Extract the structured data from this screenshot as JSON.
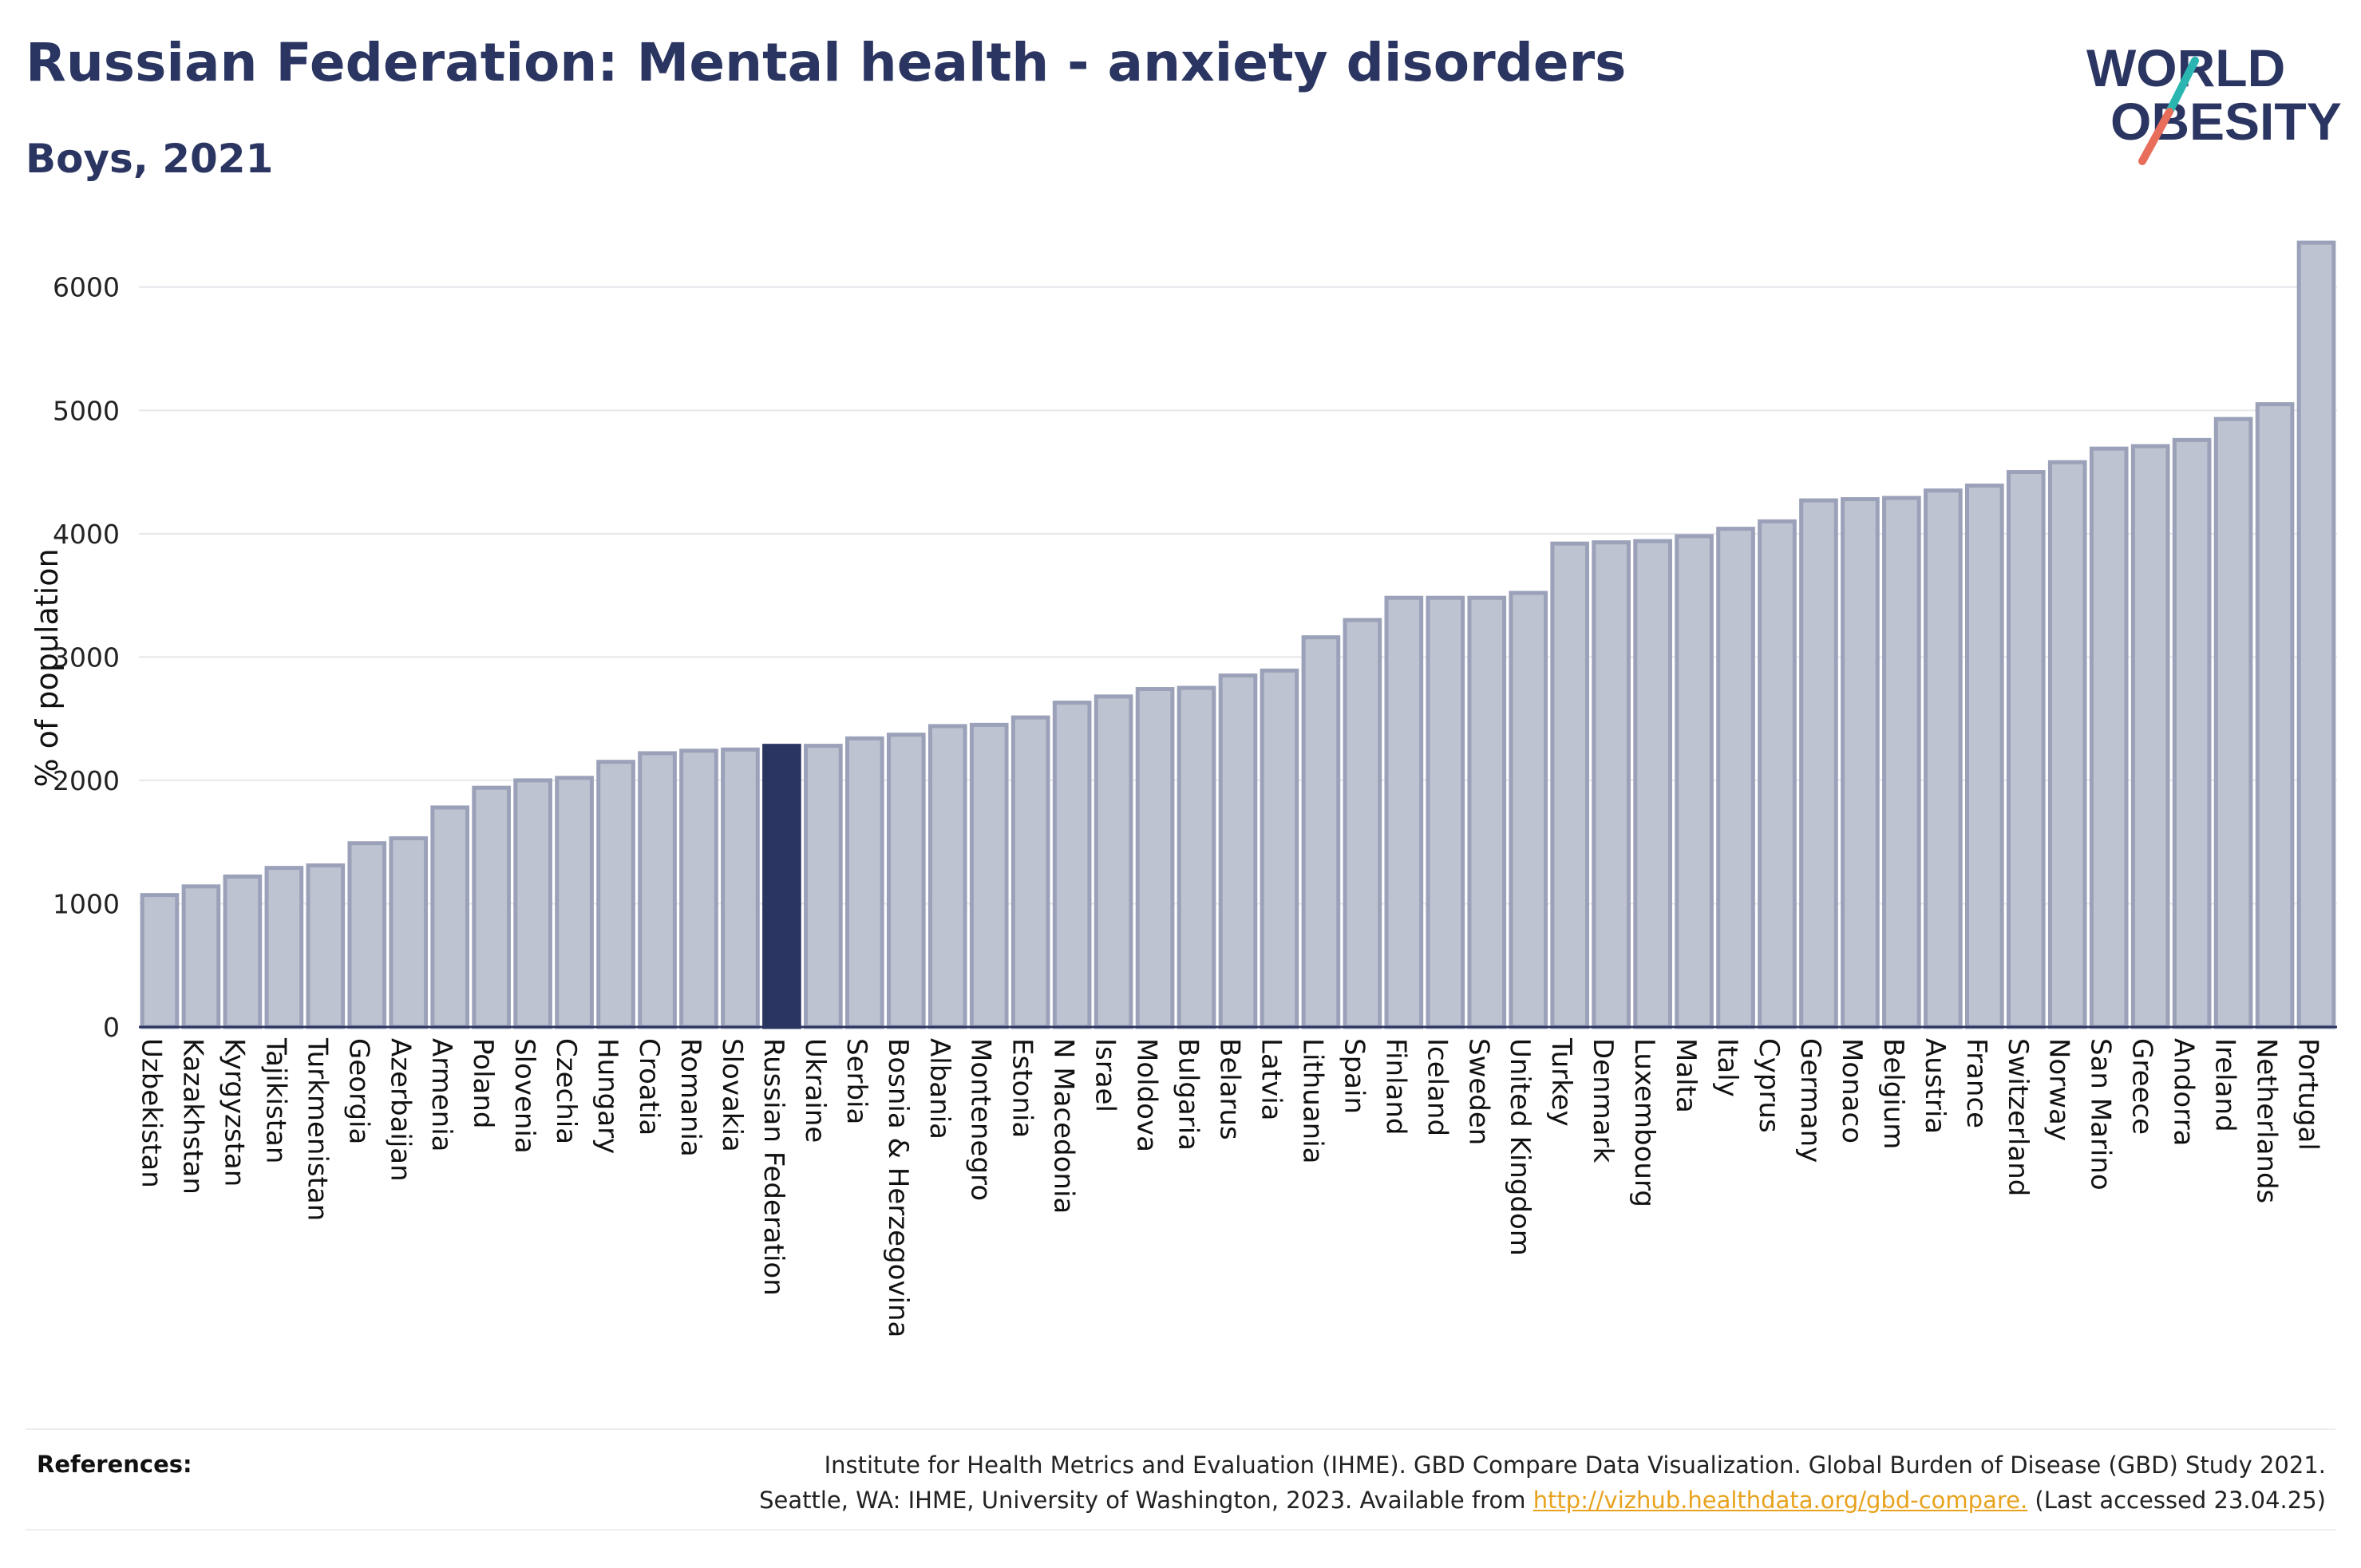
{
  "header": {
    "title": "Russian Federation: Mental health - anxiety disorders",
    "subtitle": "Boys, 2021"
  },
  "logo": {
    "line1": "WORLD",
    "line2": "OBESITY",
    "colors": {
      "text": "#2b3561",
      "slash_top": "#2ab5b0",
      "slash_bottom": "#e86d5a"
    }
  },
  "colors": {
    "bar": "#bec3d1",
    "bar_stroke": "#9aa1b8",
    "highlight": "#2b3561",
    "axis": "#2b3561",
    "grid": "#e6e7eb"
  },
  "chart_data": {
    "type": "bar",
    "ylabel": "% of population",
    "ylim": [
      0,
      6600
    ],
    "yticks": [
      0,
      1000,
      2000,
      3000,
      4000,
      5000,
      6000
    ],
    "grid": true,
    "highlight": "Russian Federation",
    "categories": [
      "Uzbekistan",
      "Kazakhstan",
      "Kyrgyzstan",
      "Tajikistan",
      "Turkmenistan",
      "Georgia",
      "Azerbaijan",
      "Armenia",
      "Poland",
      "Slovenia",
      "Czechia",
      "Hungary",
      "Croatia",
      "Romania",
      "Slovakia",
      "Russian Federation",
      "Ukraine",
      "Serbia",
      "Bosnia & Herzegovina",
      "Albania",
      "Montenegro",
      "Estonia",
      "N Macedonia",
      "Israel",
      "Moldova",
      "Bulgaria",
      "Belarus",
      "Latvia",
      "Lithuania",
      "Spain",
      "Finland",
      "Iceland",
      "Sweden",
      "United Kingdom",
      "Turkey",
      "Denmark",
      "Luxembourg",
      "Malta",
      "Italy",
      "Cyprus",
      "Germany",
      "Monaco",
      "Belgium",
      "Austria",
      "France",
      "Switzerland",
      "Norway",
      "San Marino",
      "Greece",
      "Andorra",
      "Ireland",
      "Netherlands",
      "Portugal"
    ],
    "values": [
      1070,
      1140,
      1220,
      1290,
      1310,
      1490,
      1530,
      1780,
      1940,
      2000,
      2020,
      2150,
      2220,
      2240,
      2250,
      2280,
      2280,
      2340,
      2370,
      2440,
      2450,
      2510,
      2630,
      2680,
      2740,
      2750,
      2850,
      2890,
      3160,
      3300,
      3480,
      3480,
      3480,
      3520,
      3920,
      3930,
      3940,
      3980,
      4040,
      4100,
      4270,
      4280,
      4290,
      4350,
      4390,
      4500,
      4580,
      4690,
      4710,
      4760,
      4930,
      5050,
      6360
    ]
  },
  "references": {
    "label": "References:",
    "line1": "Institute for Health Metrics and Evaluation (IHME). GBD Compare Data Visualization. Global Burden of Disease (GBD) Study 2021.",
    "line2_before": "Seattle, WA: IHME, University of Washington, 2023. Available from ",
    "link": "http://vizhub.healthdata.org/gbd-compare.",
    "line2_after": " (Last accessed 23.04.25)"
  }
}
